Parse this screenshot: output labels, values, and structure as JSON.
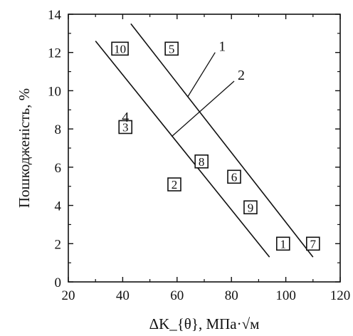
{
  "chart_data": {
    "type": "scatter",
    "title": "",
    "xlabel": "ΔK_{θ}, МПа·√м",
    "ylabel": "Пошкодженість, %",
    "xlim": [
      20,
      120
    ],
    "ylim": [
      0,
      14
    ],
    "xticks": [
      20,
      40,
      60,
      80,
      100,
      120
    ],
    "yticks": [
      0,
      2,
      4,
      6,
      8,
      10,
      12,
      14
    ],
    "grid": false,
    "legend": "none",
    "points": [
      {
        "label": "1",
        "x": 99,
        "y": 2.0
      },
      {
        "label": "2",
        "x": 59,
        "y": 5.1
      },
      {
        "label": "3",
        "x": 41,
        "y": 8.1
      },
      {
        "label": "4",
        "x": 41,
        "y": 8.6
      },
      {
        "label": "5",
        "x": 58,
        "y": 12.2
      },
      {
        "label": "6",
        "x": 81,
        "y": 5.5
      },
      {
        "label": "7",
        "x": 110,
        "y": 2.0
      },
      {
        "label": "8",
        "x": 69,
        "y": 6.3
      },
      {
        "label": "9",
        "x": 87,
        "y": 3.9
      },
      {
        "label": "10",
        "x": 39,
        "y": 12.2
      }
    ],
    "lines": [
      {
        "label": "1",
        "x": [
          43,
          110
        ],
        "y": [
          13.5,
          1.3
        ]
      },
      {
        "label": "2",
        "x": [
          30,
          94
        ],
        "y": [
          12.6,
          1.3
        ]
      }
    ],
    "line_label_leaders": [
      {
        "label": "1",
        "from": [
          64,
          9.7
        ],
        "to": [
          74,
          12.0
        ]
      },
      {
        "label": "2",
        "from": [
          58,
          7.6
        ],
        "to": [
          81,
          10.5
        ]
      }
    ]
  }
}
